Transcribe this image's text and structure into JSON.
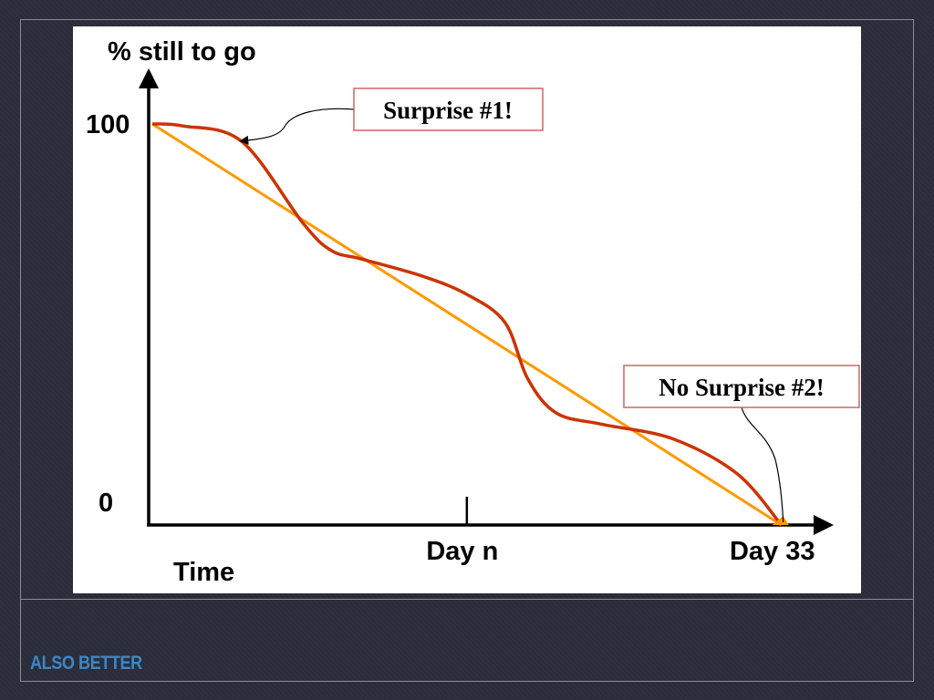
{
  "slide": {
    "caption": "ALSO BETTER"
  },
  "chart_data": {
    "type": "line",
    "ylabel": "% still to go",
    "y_ticks": [
      "100",
      "0"
    ],
    "xlabel": "Time",
    "x_tick_labels": [
      {
        "label": "Day n",
        "x": 16.5
      },
      {
        "label": "Day 33",
        "x": 33
      }
    ],
    "xlim": [
      0,
      35
    ],
    "ylim": [
      0,
      100
    ],
    "series": [
      {
        "color": "#ff9900",
        "style": "ideal-straight",
        "x": [
          0,
          33
        ],
        "y": [
          100,
          0
        ]
      },
      {
        "color": "#cc3300",
        "style": "actual-curve",
        "x": [
          0,
          1.6,
          4.7,
          7.9,
          9.4,
          11.0,
          14.2,
          16.5,
          18.5,
          19.7,
          21.2,
          23.6,
          27.3,
          30.7,
          33
        ],
        "y": [
          100,
          99.5,
          95.6,
          75.3,
          68.4,
          66.3,
          62.0,
          57.5,
          50.5,
          36.4,
          27.9,
          25.1,
          21.5,
          12.7,
          0
        ]
      }
    ],
    "annotations": [
      {
        "text": "Surprise #1!",
        "target_x": 4.7,
        "target_y": 95.6
      },
      {
        "text": "No Surprise #2!",
        "target_x": 33,
        "target_y": 0
      }
    ]
  }
}
